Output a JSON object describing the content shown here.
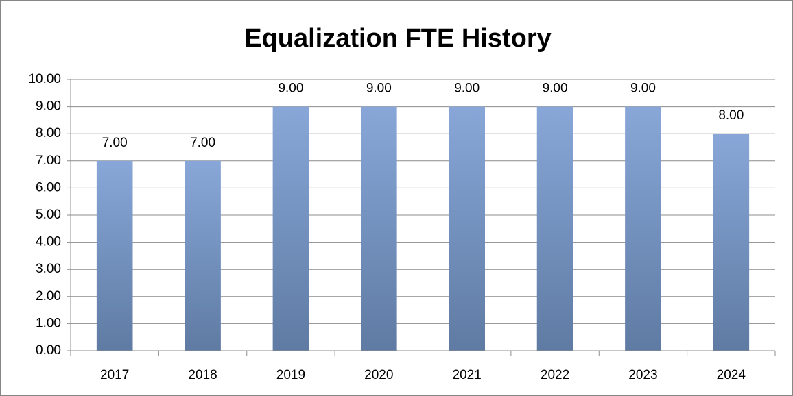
{
  "chart_data": {
    "type": "bar",
    "title": "Equalization FTE History",
    "categories": [
      "2017",
      "2018",
      "2019",
      "2020",
      "2021",
      "2022",
      "2023",
      "2024"
    ],
    "values": [
      7,
      7,
      9,
      9,
      9,
      9,
      9,
      8
    ],
    "value_labels": [
      "7.00",
      "7.00",
      "9.00",
      "9.00",
      "9.00",
      "9.00",
      "9.00",
      "8.00"
    ],
    "color": "#88a7d8",
    "ylim": [
      0,
      10
    ],
    "yticks": [
      {
        "value": 0,
        "label": "0.00"
      },
      {
        "value": 1,
        "label": "1.00"
      },
      {
        "value": 2,
        "label": "2.00"
      },
      {
        "value": 3,
        "label": "3.00"
      },
      {
        "value": 4,
        "label": "4.00"
      },
      {
        "value": 5,
        "label": "5.00"
      },
      {
        "value": 6,
        "label": "6.00"
      },
      {
        "value": 7,
        "label": "7.00"
      },
      {
        "value": 8,
        "label": "8.00"
      },
      {
        "value": 9,
        "label": "9.00"
      },
      {
        "value": 10,
        "label": "10.00"
      }
    ],
    "grid": true
  }
}
